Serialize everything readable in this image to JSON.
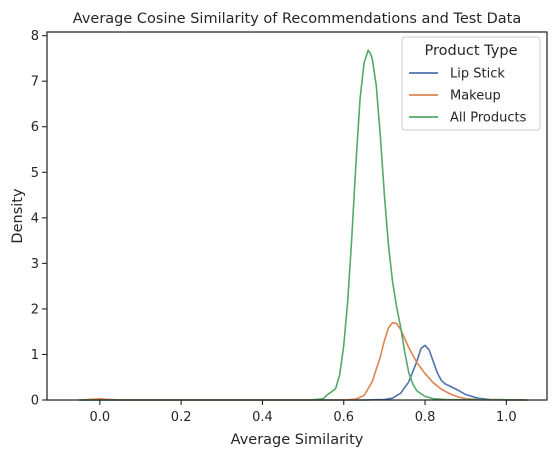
{
  "chart_data": {
    "type": "line",
    "subtype": "kde-density",
    "title": "Average Cosine Similarity of Recommendations and Test Data",
    "xlabel": "Average Similarity",
    "ylabel": "Density",
    "xlim": [
      -0.13,
      1.1
    ],
    "ylim": [
      0,
      8.08
    ],
    "xticks": [
      0.0,
      0.2,
      0.4,
      0.6,
      0.8,
      1.0
    ],
    "xtick_labels": [
      "0.0",
      "0.2",
      "0.4",
      "0.6",
      "0.8",
      "1.0"
    ],
    "yticks": [
      0,
      1,
      2,
      3,
      4,
      5,
      6,
      7,
      8
    ],
    "ytick_labels": [
      "0",
      "1",
      "2",
      "3",
      "4",
      "5",
      "6",
      "7",
      "8"
    ],
    "grid": false,
    "legend": {
      "title": "Product Type",
      "placement": "top-right"
    },
    "series": [
      {
        "name": "Lip Stick",
        "color": "#4c72b0",
        "x": [
          -0.05,
          0.65,
          0.7,
          0.72,
          0.74,
          0.76,
          0.78,
          0.79,
          0.8,
          0.81,
          0.82,
          0.83,
          0.84,
          0.85,
          0.86,
          0.88,
          0.9,
          0.93,
          0.96,
          1.05
        ],
        "y": [
          0,
          0,
          0.01,
          0.04,
          0.15,
          0.4,
          0.85,
          1.13,
          1.2,
          1.1,
          0.85,
          0.6,
          0.43,
          0.35,
          0.31,
          0.22,
          0.12,
          0.04,
          0.01,
          0
        ]
      },
      {
        "name": "Makeup",
        "color": "#dd8452",
        "x": [
          -0.05,
          -0.03,
          -0.01,
          0.0,
          0.01,
          0.03,
          0.05,
          0.6,
          0.63,
          0.65,
          0.67,
          0.69,
          0.7,
          0.71,
          0.72,
          0.73,
          0.74,
          0.75,
          0.76,
          0.78,
          0.8,
          0.82,
          0.84,
          0.86,
          0.88,
          0.9,
          0.93,
          1.05
        ],
        "y": [
          0,
          0.01,
          0.02,
          0.03,
          0.02,
          0.01,
          0,
          0,
          0.02,
          0.1,
          0.4,
          0.95,
          1.3,
          1.58,
          1.7,
          1.68,
          1.55,
          1.35,
          1.15,
          0.82,
          0.58,
          0.38,
          0.24,
          0.14,
          0.07,
          0.03,
          0.01,
          0
        ]
      },
      {
        "name": "All Products",
        "color": "#55a868",
        "x": [
          -0.05,
          0.52,
          0.55,
          0.56,
          0.57,
          0.58,
          0.59,
          0.6,
          0.61,
          0.62,
          0.63,
          0.64,
          0.65,
          0.66,
          0.665,
          0.67,
          0.68,
          0.69,
          0.7,
          0.71,
          0.72,
          0.73,
          0.74,
          0.75,
          0.76,
          0.77,
          0.78,
          0.8,
          0.82,
          0.85,
          1.05
        ],
        "y": [
          0,
          0,
          0.03,
          0.12,
          0.18,
          0.25,
          0.55,
          1.2,
          2.2,
          3.6,
          5.2,
          6.6,
          7.4,
          7.68,
          7.62,
          7.5,
          6.9,
          5.8,
          4.5,
          3.4,
          2.6,
          2.05,
          1.6,
          1.05,
          0.6,
          0.35,
          0.2,
          0.08,
          0.03,
          0.01,
          0
        ]
      }
    ]
  }
}
